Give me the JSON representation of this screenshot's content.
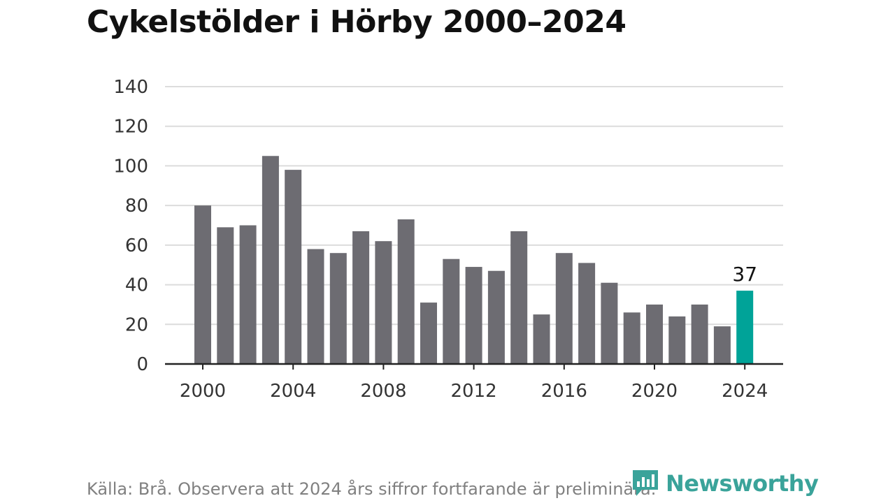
{
  "header": {
    "title": "Cykelstölder i Hörby 2000–2024"
  },
  "footer": {
    "source": "Källa: Brå. Observera att 2024 års siffror fortfarande är preliminära."
  },
  "brand": {
    "name": "Newsworthy",
    "icon": "bar-chart-logo-icon",
    "color": "#3aa39a"
  },
  "chart_data": {
    "type": "bar",
    "x": [
      2000,
      2001,
      2002,
      2003,
      2004,
      2005,
      2006,
      2007,
      2008,
      2009,
      2010,
      2011,
      2012,
      2013,
      2014,
      2015,
      2016,
      2017,
      2018,
      2019,
      2020,
      2021,
      2022,
      2023,
      2024
    ],
    "values": [
      80,
      69,
      70,
      105,
      98,
      58,
      56,
      67,
      62,
      73,
      31,
      53,
      49,
      47,
      67,
      25,
      56,
      51,
      41,
      26,
      30,
      24,
      30,
      19,
      37
    ],
    "x_ticks": [
      "2000",
      "2004",
      "2008",
      "2012",
      "2016",
      "2020",
      "2024"
    ],
    "y_ticks": [
      "0",
      "20",
      "40",
      "60",
      "80",
      "100",
      "120",
      "140"
    ],
    "ylim": [
      0,
      140
    ],
    "title": "Cykelstölder i Hörby 2000–2024",
    "xlabel": "",
    "ylabel": "",
    "grid": true,
    "highlight": {
      "year": 2024,
      "label": "37"
    },
    "colors": {
      "bar": "#6d6c72",
      "highlight": "#00a398",
      "grid": "#dcdcdc",
      "axis": "#222222",
      "text": "#333333"
    }
  }
}
